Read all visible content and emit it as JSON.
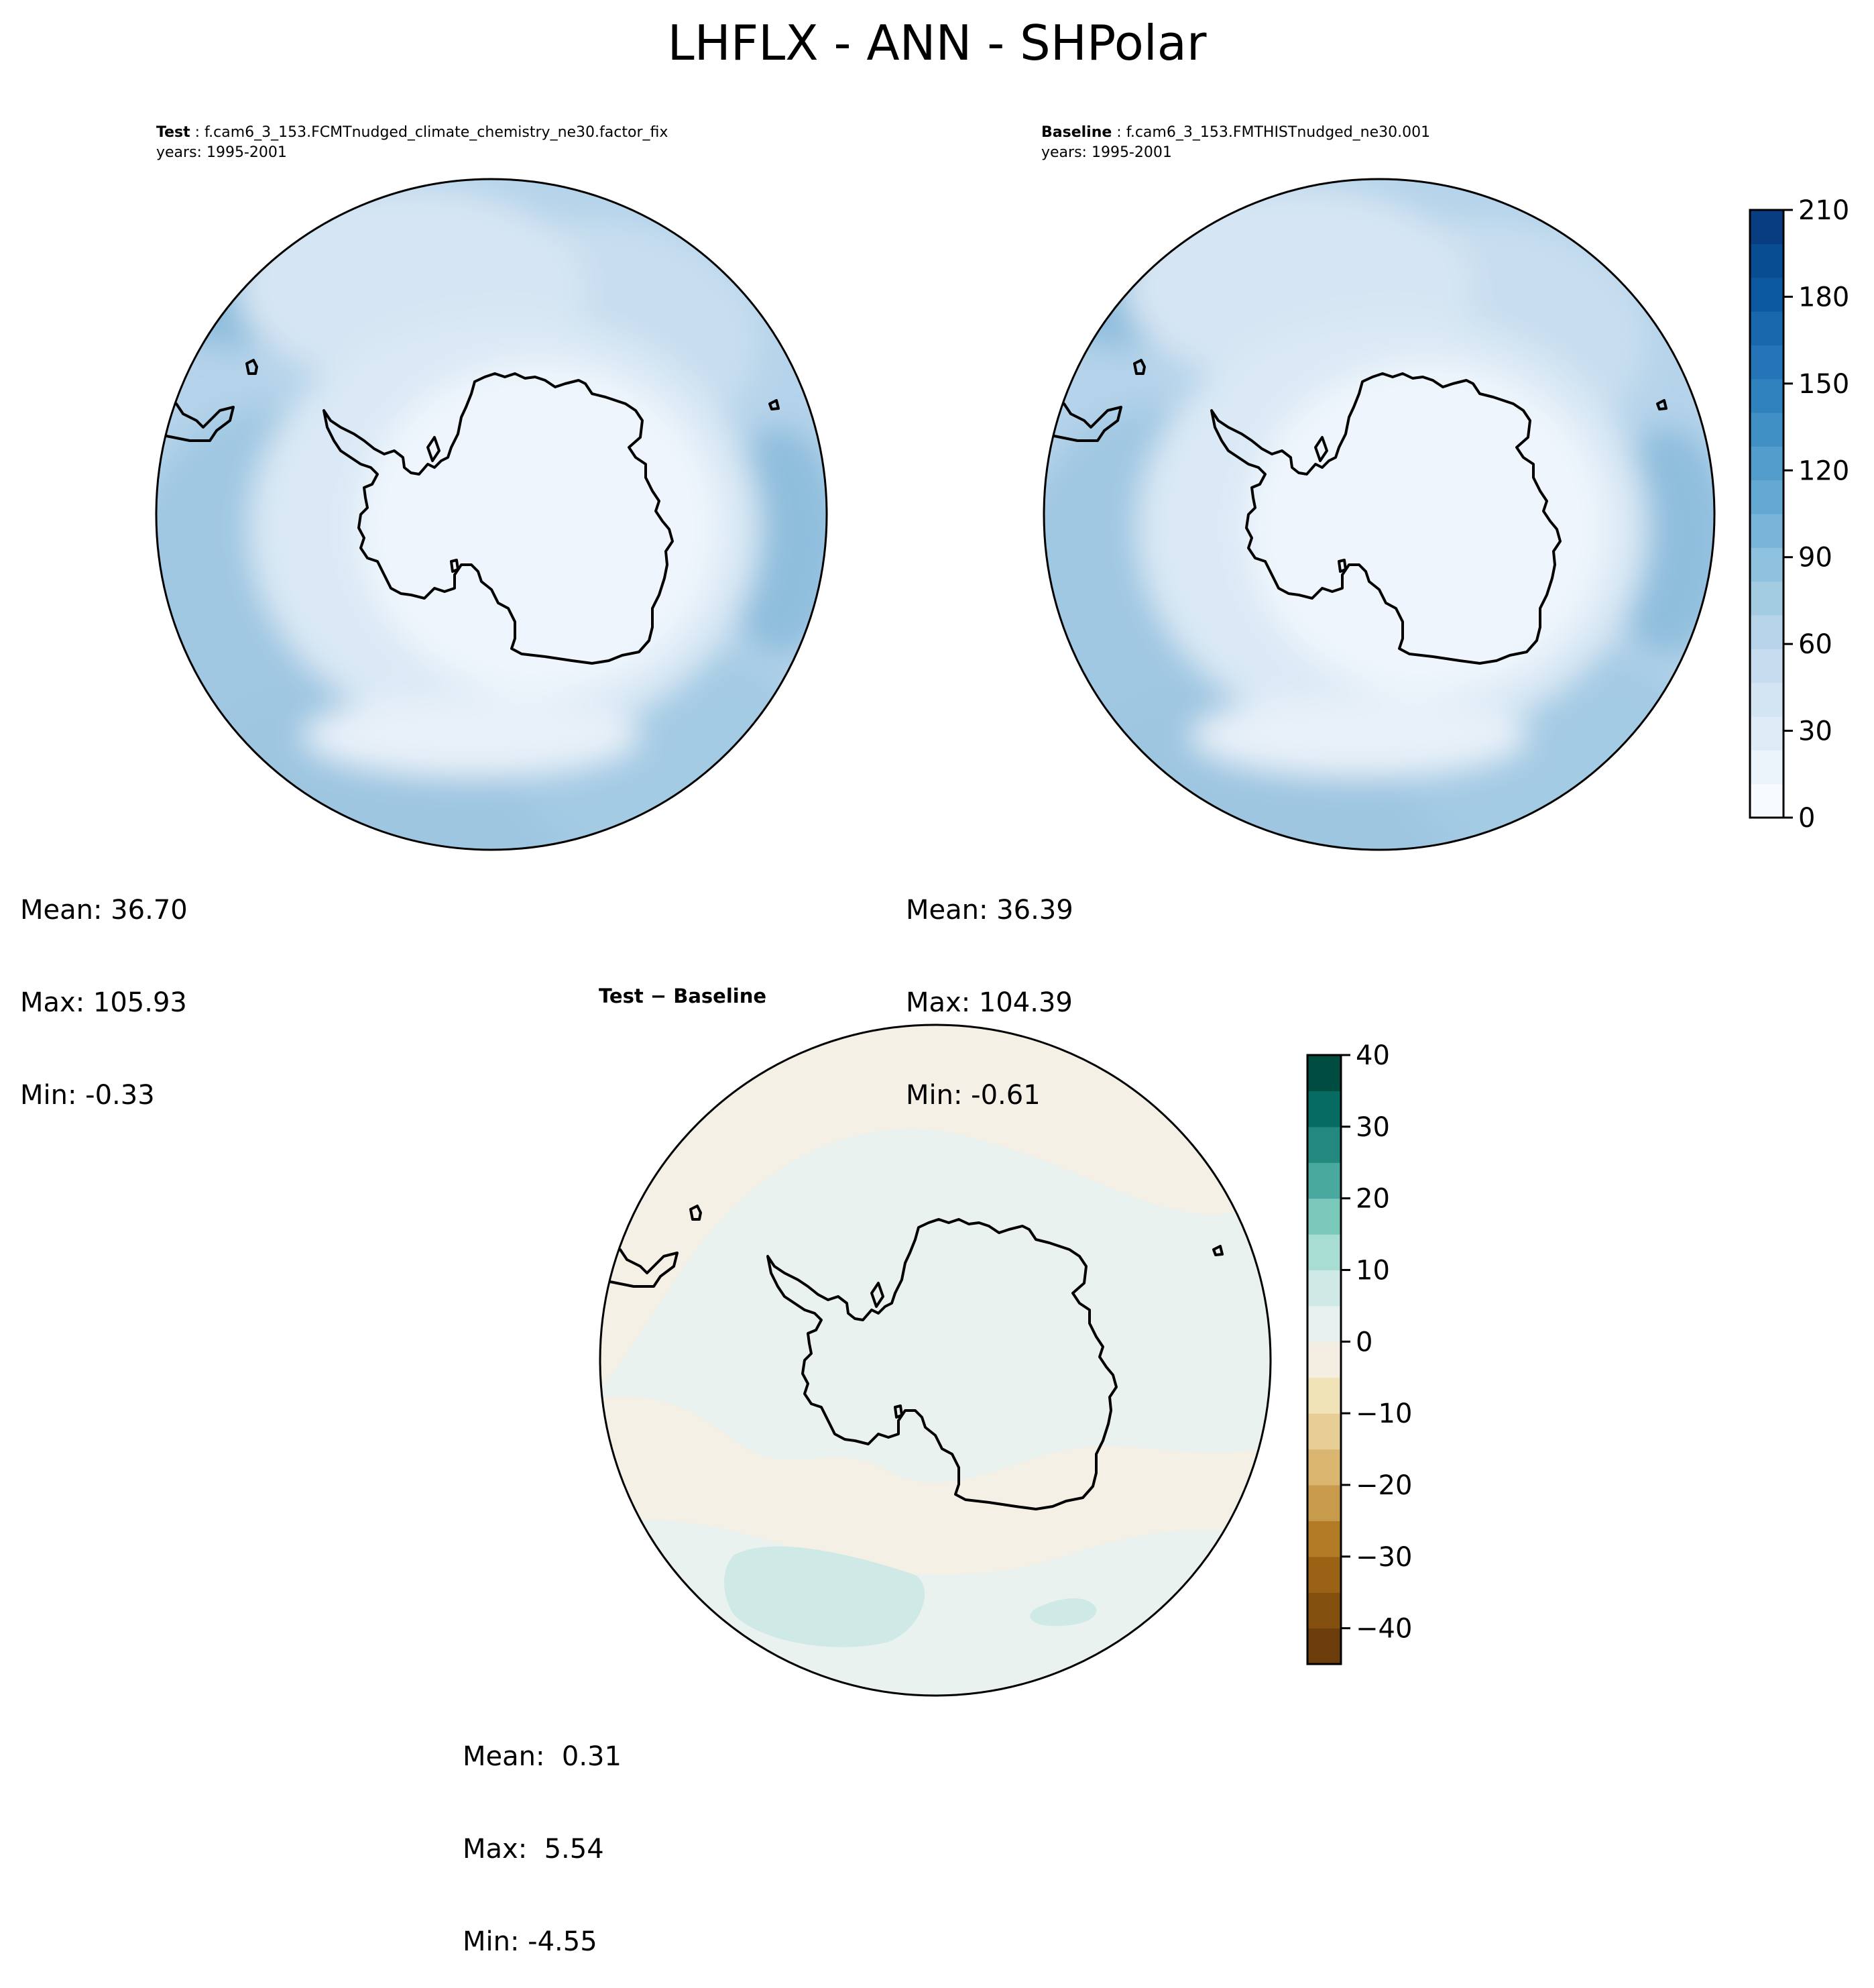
{
  "suptitle": "LHFLX - ANN - SHPolar",
  "panels": {
    "test": {
      "label": "Test",
      "case": "f.cam6_3_153.FCMTnudged_climate_chemistry_ne30.factor_fix",
      "years": "years: 1995-2001",
      "stats": {
        "mean": "Mean: 36.70",
        "max": "Max: 105.93",
        "min": "Min: -0.33"
      }
    },
    "baseline": {
      "label": "Baseline",
      "case": "f.cam6_3_153.FMTHISTnudged_ne30.001",
      "years": "years: 1995-2001",
      "stats": {
        "mean": "Mean: 36.39",
        "max": "Max: 104.39",
        "min": "Min: -0.61"
      }
    },
    "diff": {
      "title": "Test − Baseline",
      "stats": {
        "mean": "Mean:  0.31",
        "max": "Max:  5.54",
        "min": "Min: -4.55"
      }
    }
  },
  "colorbars": {
    "main": {
      "colormap": "Blues",
      "range": [
        0,
        210
      ],
      "ticks": [
        "0",
        "30",
        "60",
        "90",
        "120",
        "150",
        "180",
        "210"
      ],
      "colors": [
        "#f7fbff",
        "#ebf3fb",
        "#dfebf7",
        "#d3e4f3",
        "#c7dcef",
        "#b7d4ea",
        "#a3cce3",
        "#8fc2de",
        "#79b5d9",
        "#64a9d3",
        "#529dcc",
        "#4090c5",
        "#3082be",
        "#2474b7",
        "#1967ad",
        "#0d59a1",
        "#084c92",
        "#083e81"
      ]
    },
    "diff": {
      "colormap": "BrBG",
      "range": [
        -45,
        40
      ],
      "ticks": [
        "−40",
        "−30",
        "−20",
        "−10",
        "0",
        "10",
        "20",
        "30",
        "40"
      ],
      "colors": [
        "#6a3d0a",
        "#824f0f",
        "#9b6215",
        "#b47b27",
        "#c79a4c",
        "#dab670",
        "#e7ce95",
        "#f1e3b8",
        "#f4eee2",
        "#e8f1ef",
        "#cfeae6",
        "#a7ddd3",
        "#7ac9ba",
        "#4aa99e",
        "#23897f",
        "#066c62",
        "#004c40"
      ]
    }
  }
}
